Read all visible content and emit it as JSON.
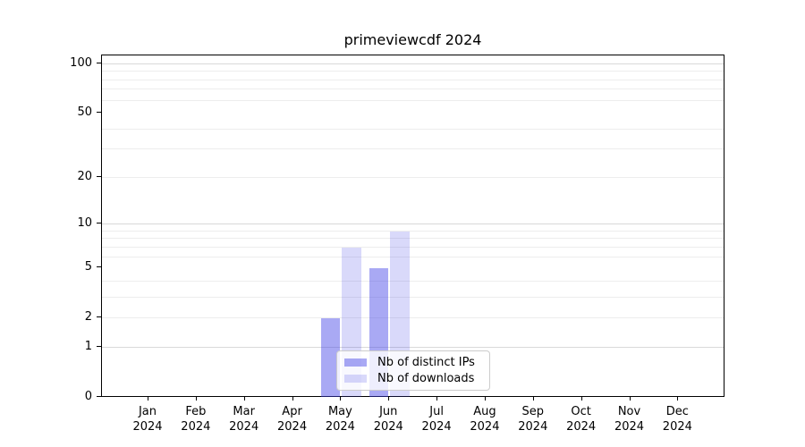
{
  "title": "primeviewcdf 2024",
  "chart_data": {
    "type": "bar",
    "title": "primeviewcdf 2024",
    "categories": [
      "Jan 2024",
      "Feb 2024",
      "Mar 2024",
      "Apr 2024",
      "May 2024",
      "Jun 2024",
      "Jul 2024",
      "Aug 2024",
      "Sep 2024",
      "Oct 2024",
      "Nov 2024",
      "Dec 2024"
    ],
    "series": [
      {
        "name": "Nb of distinct IPs",
        "color_hex": "#4040e6",
        "alpha": 0.45,
        "apparent_color": "#a9a9f4",
        "values": [
          0,
          0,
          0,
          0,
          2,
          5,
          0,
          0,
          0,
          0,
          0,
          0
        ]
      },
      {
        "name": "Nb of downloads",
        "color_hex": "#4040e6",
        "alpha": 0.2,
        "apparent_color": "#d9d9fa",
        "values": [
          0,
          0,
          0,
          0,
          7,
          9,
          0,
          0,
          0,
          0,
          0,
          0
        ]
      }
    ],
    "xlabel": "",
    "ylabel": "",
    "yscale": "log1p",
    "ylim": [
      0,
      113.3
    ],
    "y_ticks": [
      0,
      1,
      2,
      5,
      10,
      20,
      50,
      100
    ],
    "y_major_gridlines": [
      1,
      10,
      100
    ],
    "y_minor_gridlines": [
      2,
      3,
      4,
      6,
      7,
      8,
      9,
      20,
      30,
      40,
      60,
      70,
      80,
      90
    ],
    "grid": true,
    "legend": {
      "entries": [
        "Nb of distinct IPs",
        "Nb of downloads"
      ],
      "location": "inside-lower-center"
    },
    "colors": {
      "background": "#ffffff",
      "spine": "#000000",
      "major_grid": "#d9d9d9",
      "minor_grid": "#ededed",
      "legend_border": "#cccccc",
      "legend_bg": "#ffffff",
      "legend_bg_alpha": 0.8,
      "text": "#000000"
    }
  }
}
